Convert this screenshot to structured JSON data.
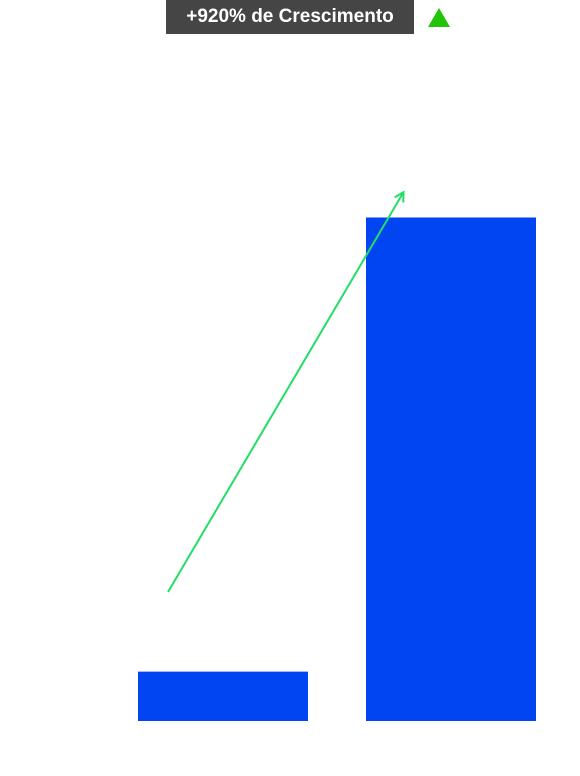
{
  "header": {
    "growth_label": "+920% de Crescimento",
    "trend_icon": "triangle-up-icon"
  },
  "colors": {
    "bar": "#0044f2",
    "arrow": "#22dd66",
    "badge_bg": "#454545",
    "trend_icon": "#22c40a"
  },
  "chart_data": {
    "type": "bar",
    "categories": [
      "",
      ""
    ],
    "values": [
      10,
      102
    ],
    "title": "",
    "xlabel": "",
    "ylabel": "",
    "ylim": [
      0,
      110
    ],
    "grid": false,
    "legend": "none",
    "annotations": [
      {
        "type": "arrow",
        "direction": "up-right",
        "text": ""
      }
    ]
  }
}
